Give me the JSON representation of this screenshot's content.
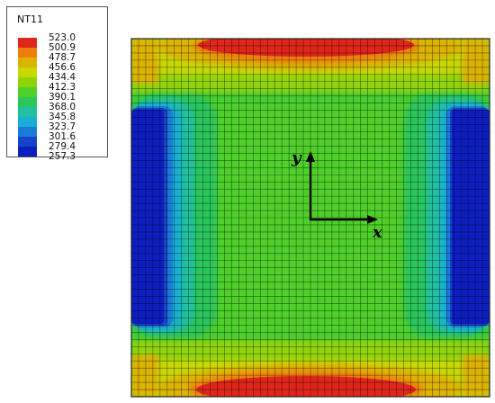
{
  "legend": {
    "title": "NT11",
    "values": [
      "523.0",
      "500.9",
      "478.7",
      "456.6",
      "434.4",
      "412.3",
      "390.1",
      "368.0",
      "345.8",
      "323.7",
      "301.6",
      "279.4",
      "257.3"
    ],
    "colors": [
      "#e0261a",
      "#ef7d0b",
      "#ddb300",
      "#c7d900",
      "#8fd40a",
      "#4fcf2a",
      "#2cc65b",
      "#20c0a0",
      "#18aed6",
      "#1c7bd8",
      "#1442c8",
      "#0d1ec0"
    ]
  },
  "axes": {
    "x_label": "x",
    "y_label": "y"
  }
}
